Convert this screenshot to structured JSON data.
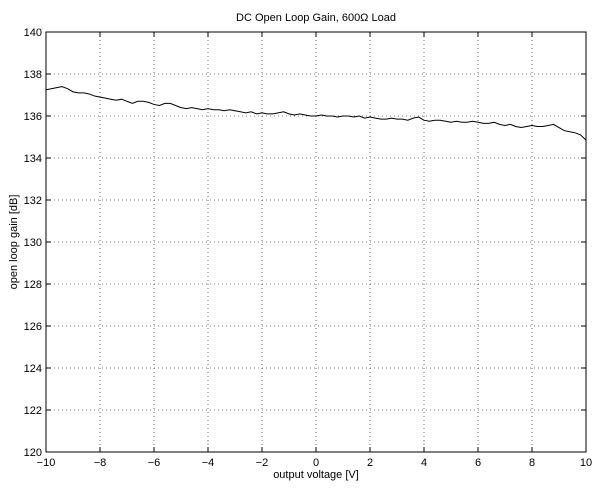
{
  "chart_data": {
    "type": "line",
    "title": "DC Open Loop Gain, 600Ω Load",
    "xlabel": "output voltage [V]",
    "ylabel": "open loop gain [dB]",
    "xlim": [
      -10,
      10
    ],
    "ylim": [
      120,
      140
    ],
    "xticks": [
      -10,
      -8,
      -6,
      -4,
      -2,
      0,
      2,
      4,
      6,
      8,
      10
    ],
    "yticks": [
      120,
      122,
      124,
      126,
      128,
      130,
      132,
      134,
      136,
      138,
      140
    ],
    "grid": true,
    "series": [
      {
        "color": "#000000",
        "x": [
          -10,
          -9.8,
          -9.6,
          -9.4,
          -9.2,
          -9.0,
          -8.8,
          -8.6,
          -8.4,
          -8.2,
          -8.0,
          -7.8,
          -7.6,
          -7.4,
          -7.2,
          -7.0,
          -6.8,
          -6.6,
          -6.4,
          -6.2,
          -6.0,
          -5.8,
          -5.6,
          -5.4,
          -5.2,
          -5.0,
          -4.8,
          -4.6,
          -4.4,
          -4.2,
          -4.0,
          -3.8,
          -3.6,
          -3.4,
          -3.2,
          -3.0,
          -2.8,
          -2.6,
          -2.4,
          -2.2,
          -2.0,
          -1.8,
          -1.6,
          -1.4,
          -1.2,
          -1.0,
          -0.8,
          -0.6,
          -0.4,
          -0.2,
          0.0,
          0.2,
          0.4,
          0.6,
          0.8,
          1.0,
          1.2,
          1.4,
          1.6,
          1.8,
          2.0,
          2.2,
          2.4,
          2.6,
          2.8,
          3.0,
          3.2,
          3.4,
          3.6,
          3.8,
          4.0,
          4.2,
          4.4,
          4.6,
          4.8,
          5.0,
          5.2,
          5.4,
          5.6,
          5.8,
          6.0,
          6.2,
          6.4,
          6.6,
          6.8,
          7.0,
          7.2,
          7.4,
          7.6,
          7.8,
          8.0,
          8.2,
          8.4,
          8.6,
          8.8,
          9.0,
          9.2,
          9.4,
          9.6,
          9.8,
          10.0
        ],
        "y": [
          137.25,
          137.3,
          137.35,
          137.4,
          137.3,
          137.15,
          137.1,
          137.1,
          137.05,
          136.95,
          136.9,
          136.85,
          136.8,
          136.75,
          136.8,
          136.7,
          136.6,
          136.7,
          136.7,
          136.65,
          136.55,
          136.5,
          136.6,
          136.6,
          136.5,
          136.4,
          136.35,
          136.4,
          136.35,
          136.3,
          136.35,
          136.3,
          136.3,
          136.25,
          136.3,
          136.25,
          136.2,
          136.15,
          136.2,
          136.1,
          136.15,
          136.1,
          136.1,
          136.15,
          136.2,
          136.1,
          136.05,
          136.1,
          136.05,
          136.0,
          136.0,
          136.05,
          136.0,
          136.0,
          135.95,
          136.0,
          136.0,
          135.95,
          136.0,
          135.9,
          135.95,
          135.9,
          135.85,
          135.85,
          135.9,
          135.85,
          135.85,
          135.8,
          135.9,
          135.95,
          135.8,
          135.75,
          135.8,
          135.8,
          135.75,
          135.7,
          135.75,
          135.7,
          135.7,
          135.75,
          135.7,
          135.65,
          135.65,
          135.7,
          135.6,
          135.55,
          135.6,
          135.5,
          135.45,
          135.5,
          135.55,
          135.5,
          135.5,
          135.55,
          135.6,
          135.45,
          135.3,
          135.25,
          135.2,
          135.1,
          134.85
        ]
      }
    ]
  }
}
